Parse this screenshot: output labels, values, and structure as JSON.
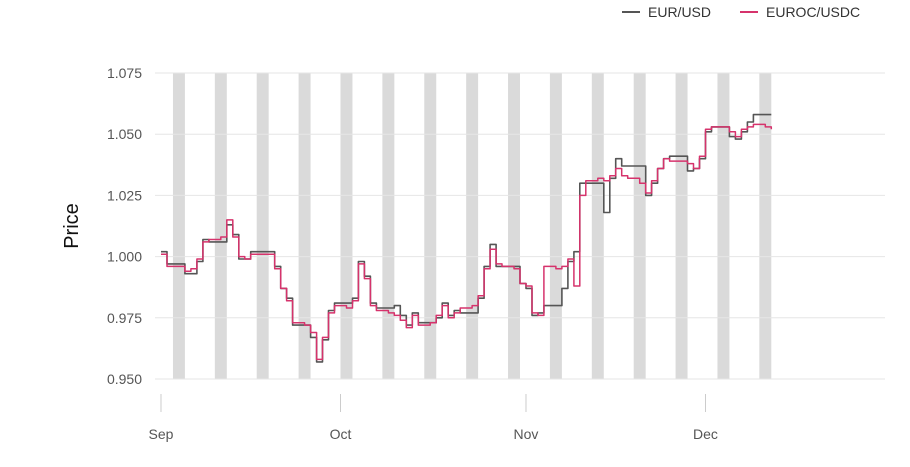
{
  "chart_data": {
    "type": "line",
    "ylabel": "Price",
    "ylim": [
      0.95,
      1.075
    ],
    "yticks": [
      0.95,
      0.975,
      1.0,
      1.025,
      1.05,
      1.075
    ],
    "ytick_labels": [
      "0.950",
      "0.975",
      "1.000",
      "1.025",
      "1.050",
      "1.075"
    ],
    "x_range": [
      "2022-08-31",
      "2022-12-31"
    ],
    "xticks": [
      {
        "date": "2022-09-01",
        "label": "Sep"
      },
      {
        "date": "2022-10-01",
        "label": "Oct"
      },
      {
        "date": "2022-11-01",
        "label": "Nov"
      },
      {
        "date": "2022-12-01",
        "label": "Dec"
      }
    ],
    "grid": true,
    "legend_position": "top-right",
    "shaded_periods_label": "weekends",
    "weekends": [
      [
        "2022-09-03",
        "2022-09-05"
      ],
      [
        "2022-09-10",
        "2022-09-12"
      ],
      [
        "2022-09-17",
        "2022-09-19"
      ],
      [
        "2022-09-24",
        "2022-09-26"
      ],
      [
        "2022-10-01",
        "2022-10-03"
      ],
      [
        "2022-10-08",
        "2022-10-10"
      ],
      [
        "2022-10-15",
        "2022-10-17"
      ],
      [
        "2022-10-22",
        "2022-10-24"
      ],
      [
        "2022-10-29",
        "2022-10-31"
      ],
      [
        "2022-11-05",
        "2022-11-07"
      ],
      [
        "2022-11-12",
        "2022-11-14"
      ],
      [
        "2022-11-19",
        "2022-11-21"
      ],
      [
        "2022-11-26",
        "2022-11-28"
      ],
      [
        "2022-12-03",
        "2022-12-05"
      ],
      [
        "2022-12-10",
        "2022-12-12"
      ]
    ],
    "series": [
      {
        "name": "EUR/USD",
        "color": "#555555",
        "points": [
          [
            "2022-09-01",
            1.002
          ],
          [
            "2022-09-02",
            0.997
          ],
          [
            "2022-09-05",
            0.993
          ],
          [
            "2022-09-06",
            0.993
          ],
          [
            "2022-09-07",
            0.998
          ],
          [
            "2022-09-08",
            1.007
          ],
          [
            "2022-09-09",
            1.006
          ],
          [
            "2022-09-12",
            1.013
          ],
          [
            "2022-09-13",
            1.009
          ],
          [
            "2022-09-14",
            0.999
          ],
          [
            "2022-09-15",
            0.999
          ],
          [
            "2022-09-16",
            1.002
          ],
          [
            "2022-09-19",
            1.002
          ],
          [
            "2022-09-20",
            0.996
          ],
          [
            "2022-09-21",
            0.987
          ],
          [
            "2022-09-22",
            0.983
          ],
          [
            "2022-09-23",
            0.972
          ],
          [
            "2022-09-26",
            0.967
          ],
          [
            "2022-09-27",
            0.957
          ],
          [
            "2022-09-28",
            0.966
          ],
          [
            "2022-09-29",
            0.978
          ],
          [
            "2022-09-30",
            0.981
          ],
          [
            "2022-10-03",
            0.983
          ],
          [
            "2022-10-04",
            0.998
          ],
          [
            "2022-10-05",
            0.992
          ],
          [
            "2022-10-06",
            0.981
          ],
          [
            "2022-10-07",
            0.979
          ],
          [
            "2022-10-10",
            0.98
          ],
          [
            "2022-10-11",
            0.976
          ],
          [
            "2022-10-12",
            0.972
          ],
          [
            "2022-10-13",
            0.977
          ],
          [
            "2022-10-14",
            0.973
          ],
          [
            "2022-10-17",
            0.975
          ],
          [
            "2022-10-18",
            0.981
          ],
          [
            "2022-10-19",
            0.976
          ],
          [
            "2022-10-20",
            0.978
          ],
          [
            "2022-10-21",
            0.977
          ],
          [
            "2022-10-24",
            0.983
          ],
          [
            "2022-10-25",
            0.996
          ],
          [
            "2022-10-26",
            1.005
          ],
          [
            "2022-10-27",
            0.996
          ],
          [
            "2022-10-28",
            0.996
          ],
          [
            "2022-10-31",
            0.989
          ],
          [
            "2022-11-01",
            0.987
          ],
          [
            "2022-11-02",
            0.976
          ],
          [
            "2022-11-03",
            0.977
          ],
          [
            "2022-11-04",
            0.98
          ],
          [
            "2022-11-07",
            0.987
          ],
          [
            "2022-11-08",
            0.998
          ],
          [
            "2022-11-09",
            1.002
          ],
          [
            "2022-11-10",
            1.03
          ],
          [
            "2022-11-11",
            1.03
          ],
          [
            "2022-11-14",
            1.018
          ],
          [
            "2022-11-15",
            1.032
          ],
          [
            "2022-11-16",
            1.04
          ],
          [
            "2022-11-17",
            1.037
          ],
          [
            "2022-11-18",
            1.037
          ],
          [
            "2022-11-21",
            1.025
          ],
          [
            "2022-11-22",
            1.03
          ],
          [
            "2022-11-23",
            1.036
          ],
          [
            "2022-11-24",
            1.04
          ],
          [
            "2022-11-25",
            1.041
          ],
          [
            "2022-11-28",
            1.035
          ],
          [
            "2022-11-29",
            1.036
          ],
          [
            "2022-11-30",
            1.04
          ],
          [
            "2022-12-01",
            1.051
          ],
          [
            "2022-12-02",
            1.053
          ],
          [
            "2022-12-05",
            1.049
          ],
          [
            "2022-12-06",
            1.048
          ],
          [
            "2022-12-07",
            1.051
          ],
          [
            "2022-12-08",
            1.055
          ],
          [
            "2022-12-09",
            1.058
          ],
          [
            "2022-12-12",
            1.058
          ]
        ]
      },
      {
        "name": "EUROC/USDC",
        "color": "#d6336c",
        "points": [
          [
            "2022-09-01",
            1.001
          ],
          [
            "2022-09-02",
            0.996
          ],
          [
            "2022-09-04",
            0.996
          ],
          [
            "2022-09-05",
            0.994
          ],
          [
            "2022-09-06",
            0.995
          ],
          [
            "2022-09-07",
            0.999
          ],
          [
            "2022-09-08",
            1.006
          ],
          [
            "2022-09-09",
            1.007
          ],
          [
            "2022-09-11",
            1.008
          ],
          [
            "2022-09-12",
            1.015
          ],
          [
            "2022-09-13",
            1.008
          ],
          [
            "2022-09-14",
            1.0
          ],
          [
            "2022-09-15",
            0.999
          ],
          [
            "2022-09-16",
            1.001
          ],
          [
            "2022-09-18",
            1.001
          ],
          [
            "2022-09-19",
            1.001
          ],
          [
            "2022-09-20",
            0.995
          ],
          [
            "2022-09-21",
            0.987
          ],
          [
            "2022-09-22",
            0.982
          ],
          [
            "2022-09-23",
            0.973
          ],
          [
            "2022-09-25",
            0.972
          ],
          [
            "2022-09-26",
            0.969
          ],
          [
            "2022-09-27",
            0.958
          ],
          [
            "2022-09-28",
            0.967
          ],
          [
            "2022-09-29",
            0.977
          ],
          [
            "2022-09-30",
            0.98
          ],
          [
            "2022-10-02",
            0.979
          ],
          [
            "2022-10-03",
            0.982
          ],
          [
            "2022-10-04",
            0.997
          ],
          [
            "2022-10-05",
            0.991
          ],
          [
            "2022-10-06",
            0.98
          ],
          [
            "2022-10-07",
            0.978
          ],
          [
            "2022-10-09",
            0.977
          ],
          [
            "2022-10-10",
            0.976
          ],
          [
            "2022-10-11",
            0.974
          ],
          [
            "2022-10-12",
            0.971
          ],
          [
            "2022-10-13",
            0.976
          ],
          [
            "2022-10-14",
            0.972
          ],
          [
            "2022-10-16",
            0.973
          ],
          [
            "2022-10-17",
            0.976
          ],
          [
            "2022-10-18",
            0.98
          ],
          [
            "2022-10-19",
            0.975
          ],
          [
            "2022-10-20",
            0.977
          ],
          [
            "2022-10-21",
            0.979
          ],
          [
            "2022-10-23",
            0.98
          ],
          [
            "2022-10-24",
            0.984
          ],
          [
            "2022-10-25",
            0.995
          ],
          [
            "2022-10-26",
            1.003
          ],
          [
            "2022-10-27",
            0.997
          ],
          [
            "2022-10-28",
            0.996
          ],
          [
            "2022-10-30",
            0.995
          ],
          [
            "2022-10-31",
            0.989
          ],
          [
            "2022-11-01",
            0.988
          ],
          [
            "2022-11-02",
            0.977
          ],
          [
            "2022-11-03",
            0.976
          ],
          [
            "2022-11-04",
            0.996
          ],
          [
            "2022-11-06",
            0.995
          ],
          [
            "2022-11-07",
            0.996
          ],
          [
            "2022-11-08",
            0.999
          ],
          [
            "2022-11-09",
            0.988
          ],
          [
            "2022-11-10",
            1.025
          ],
          [
            "2022-11-11",
            1.031
          ],
          [
            "2022-11-13",
            1.032
          ],
          [
            "2022-11-14",
            1.031
          ],
          [
            "2022-11-15",
            1.033
          ],
          [
            "2022-11-16",
            1.036
          ],
          [
            "2022-11-17",
            1.033
          ],
          [
            "2022-11-18",
            1.032
          ],
          [
            "2022-11-20",
            1.03
          ],
          [
            "2022-11-21",
            1.026
          ],
          [
            "2022-11-22",
            1.031
          ],
          [
            "2022-11-23",
            1.036
          ],
          [
            "2022-11-24",
            1.04
          ],
          [
            "2022-11-25",
            1.039
          ],
          [
            "2022-11-27",
            1.039
          ],
          [
            "2022-11-28",
            1.038
          ],
          [
            "2022-11-29",
            1.036
          ],
          [
            "2022-11-30",
            1.041
          ],
          [
            "2022-12-01",
            1.052
          ],
          [
            "2022-12-02",
            1.053
          ],
          [
            "2022-12-04",
            1.053
          ],
          [
            "2022-12-05",
            1.051
          ],
          [
            "2022-12-06",
            1.049
          ],
          [
            "2022-12-07",
            1.052
          ],
          [
            "2022-12-08",
            1.053
          ],
          [
            "2022-12-09",
            1.054
          ],
          [
            "2022-12-11",
            1.053
          ],
          [
            "2022-12-12",
            1.052
          ]
        ]
      }
    ]
  }
}
